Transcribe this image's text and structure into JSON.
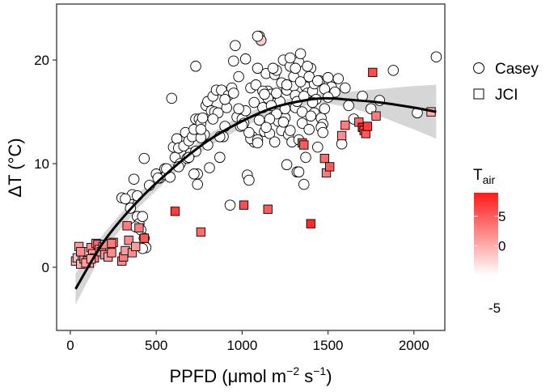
{
  "chart_data": {
    "type": "scatter",
    "xlabel": "PPFD (μmol m",
    "xlabel_sup1": "−2",
    "xlabel_mid": " s",
    "xlabel_sup2": "−1",
    "xlabel_end": ")",
    "ylabel": "ΔT (°C)",
    "xlim": [
      -80,
      2180
    ],
    "ylim": [
      -6.1,
      25.4
    ],
    "x_ticks": [
      0,
      500,
      1000,
      1500,
      2000
    ],
    "y_ticks": [
      0,
      10,
      20
    ],
    "grid": false,
    "legend": {
      "placement": "right",
      "entries": [
        {
          "label": "Casey",
          "shape": "circle"
        },
        {
          "label": "JCI",
          "shape": "square"
        }
      ]
    },
    "colorbar": {
      "title": "T",
      "title_sub": "air",
      "ticks": [
        5,
        0,
        -5
      ],
      "range": [
        -5,
        9
      ],
      "low_color": "#ffffff",
      "high_color": "#ff1a1a"
    },
    "fit_curve": {
      "x": [
        30,
        200,
        400,
        600,
        800,
        1000,
        1200,
        1400,
        1500,
        1600,
        1800,
        2000,
        2130
      ],
      "y": [
        -2.1,
        2.6,
        6.5,
        9.6,
        12.2,
        14.1,
        15.5,
        16.2,
        16.3,
        16.2,
        15.9,
        15.4,
        15.0
      ],
      "ci_lower": [
        -3.6,
        1.8,
        5.8,
        9.0,
        11.6,
        13.5,
        15.0,
        15.7,
        15.8,
        15.5,
        14.6,
        13.3,
        12.4
      ],
      "ci_upper": [
        -0.6,
        3.4,
        7.2,
        10.2,
        12.8,
        14.7,
        16.0,
        16.7,
        16.8,
        16.9,
        17.2,
        17.5,
        17.6
      ]
    },
    "series": [
      {
        "name": "Casey",
        "shape": "circle",
        "points": [
          [
            340,
            6.5
          ],
          [
            360,
            7.0
          ],
          [
            370,
            8.5
          ],
          [
            390,
            4.9
          ],
          [
            400,
            4.2
          ],
          [
            410,
            3.6
          ],
          [
            420,
            4.9
          ],
          [
            430,
            2.8
          ],
          [
            440,
            1.9
          ],
          [
            420,
            1.8
          ],
          [
            300,
            6.7
          ],
          [
            320,
            6.6
          ],
          [
            350,
            5.7
          ],
          [
            380,
            3.9
          ],
          [
            390,
            6.9
          ],
          [
            430,
            10.5
          ],
          [
            460,
            7.9
          ],
          [
            500,
            9.0
          ],
          [
            520,
            8.6
          ],
          [
            550,
            9.5
          ],
          [
            560,
            8.9
          ],
          [
            580,
            8.7
          ],
          [
            600,
            11.6
          ],
          [
            610,
            10.6
          ],
          [
            620,
            12.4
          ],
          [
            630,
            11.5
          ],
          [
            640,
            10.0
          ],
          [
            660,
            11.7
          ],
          [
            670,
            13.0
          ],
          [
            680,
            10.5
          ],
          [
            690,
            12.2
          ],
          [
            700,
            11.0
          ],
          [
            710,
            12.6
          ],
          [
            720,
            13.3
          ],
          [
            730,
            14.3
          ],
          [
            740,
            8.0
          ],
          [
            740,
            9.0
          ],
          [
            750,
            14.3
          ],
          [
            760,
            13.9
          ],
          [
            770,
            14.4
          ],
          [
            780,
            12.8
          ],
          [
            790,
            15.6
          ],
          [
            800,
            16.0
          ],
          [
            820,
            15.1
          ],
          [
            830,
            16.5
          ],
          [
            840,
            15.0
          ],
          [
            850,
            17.1
          ],
          [
            860,
            14.9
          ],
          [
            880,
            17.1
          ],
          [
            890,
            12.6
          ],
          [
            900,
            13.6
          ],
          [
            910,
            15.4
          ],
          [
            920,
            16.6
          ],
          [
            930,
            6.0
          ],
          [
            940,
            17.3
          ],
          [
            950,
            16.8
          ],
          [
            960,
            21.4
          ],
          [
            970,
            14.5
          ],
          [
            980,
            18.4
          ],
          [
            990,
            13.6
          ],
          [
            1000,
            14.3
          ],
          [
            1010,
            13.9
          ],
          [
            1020,
            15.1
          ],
          [
            1030,
            8.9
          ],
          [
            1040,
            8.4
          ],
          [
            1050,
            17.3
          ],
          [
            1060,
            12.6
          ],
          [
            1070,
            12.1
          ],
          [
            1080,
            17.6
          ],
          [
            1090,
            19.2
          ],
          [
            1100,
            22.3
          ],
          [
            1110,
            21.9
          ],
          [
            1120,
            15.4
          ],
          [
            1130,
            13.1
          ],
          [
            1140,
            18.7
          ],
          [
            1150,
            17.0
          ],
          [
            1160,
            12.9
          ],
          [
            1170,
            16.7
          ],
          [
            1180,
            14.5
          ],
          [
            1190,
            18.6
          ],
          [
            1200,
            19.0
          ],
          [
            1210,
            14.1
          ],
          [
            1220,
            16.0
          ],
          [
            1230,
            13.2
          ],
          [
            1240,
            20.0
          ],
          [
            1250,
            14.4
          ],
          [
            1260,
            17.1
          ],
          [
            1270,
            12.8
          ],
          [
            1280,
            19.4
          ],
          [
            1290,
            12.1
          ],
          [
            1300,
            17.5
          ],
          [
            1310,
            15.4
          ],
          [
            1320,
            9.2
          ],
          [
            1330,
            19.8
          ],
          [
            1340,
            20.6
          ],
          [
            1350,
            13.9
          ],
          [
            1360,
            8.0
          ],
          [
            1370,
            17.4
          ],
          [
            1380,
            16.8
          ],
          [
            1390,
            13.3
          ],
          [
            1400,
            19.2
          ],
          [
            1410,
            17.0
          ],
          [
            1420,
            14.9
          ],
          [
            1430,
            16.2
          ],
          [
            1440,
            11.6
          ],
          [
            1450,
            18.0
          ],
          [
            1460,
            14.4
          ],
          [
            1470,
            13.8
          ],
          [
            1480,
            15.3
          ],
          [
            1500,
            18.3
          ],
          [
            1510,
            16.6
          ],
          [
            1520,
            17.4
          ],
          [
            1540,
            16.9
          ],
          [
            1560,
            18.2
          ],
          [
            1580,
            11.9
          ],
          [
            1600,
            17.3
          ],
          [
            1620,
            15.6
          ],
          [
            1650,
            14.3
          ],
          [
            1700,
            16.5
          ],
          [
            1750,
            15.3
          ],
          [
            1800,
            16.1
          ],
          [
            1880,
            19.0
          ],
          [
            2020,
            14.9
          ],
          [
            2130,
            20.3
          ],
          [
            1090,
            22.3
          ],
          [
            1050,
            12.4
          ],
          [
            1150,
            16.3
          ],
          [
            1200,
            14.8
          ],
          [
            1250,
            15.3
          ],
          [
            1330,
            12.3
          ],
          [
            1380,
            19.4
          ],
          [
            1420,
            17.7
          ],
          [
            1000,
            13.7
          ],
          [
            1100,
            14.2
          ],
          [
            1170,
            15.6
          ],
          [
            1230,
            17.8
          ],
          [
            1310,
            16.6
          ],
          [
            1370,
            10.6
          ],
          [
            1260,
            9.9
          ],
          [
            1330,
            9.2
          ],
          [
            1120,
            17.0
          ],
          [
            1130,
            16.7
          ],
          [
            1180,
            19.2
          ],
          [
            1280,
            20.2
          ],
          [
            1300,
            18.4
          ],
          [
            1340,
            17.9
          ],
          [
            1460,
            13.5
          ],
          [
            950,
            19.9
          ],
          [
            1020,
            20.1
          ],
          [
            900,
            16.2
          ],
          [
            830,
            14.3
          ],
          [
            980,
            15.3
          ],
          [
            1070,
            15.9
          ],
          [
            1160,
            14.3
          ],
          [
            1200,
            16.8
          ],
          [
            1240,
            14.0
          ],
          [
            1280,
            13.2
          ],
          [
            1320,
            16.0
          ],
          [
            1350,
            15.0
          ],
          [
            1390,
            18.4
          ],
          [
            1410,
            15.9
          ],
          [
            1440,
            18.0
          ],
          [
            1480,
            17.2
          ],
          [
            1500,
            16.4
          ],
          [
            1040,
            13.0
          ],
          [
            1090,
            12.3
          ],
          [
            1140,
            13.5
          ],
          [
            1190,
            12.1
          ],
          [
            1260,
            17.6
          ],
          [
            1310,
            19.2
          ],
          [
            1360,
            16.5
          ],
          [
            1400,
            14.6
          ],
          [
            730,
            11.2
          ],
          [
            760,
            12.5
          ],
          [
            870,
            12.6
          ],
          [
            720,
            9.0
          ],
          [
            690,
            10.6
          ],
          [
            760,
            13.3
          ],
          [
            1090,
            12.0
          ],
          [
            1470,
            13.0
          ],
          [
            590,
            16.3
          ],
          [
            730,
            19.4
          ],
          [
            630,
            9.7
          ],
          [
            560,
            9.5
          ],
          [
            510,
            8.6
          ],
          [
            800,
            11.8
          ],
          [
            870,
            10.6
          ],
          [
            810,
            9.6
          ]
        ],
        "tair": [
          -5,
          -5,
          -5,
          -5,
          -5,
          -5,
          -5,
          -5,
          -5,
          -5,
          -5,
          -5,
          -5,
          -5,
          -5,
          -5,
          -5,
          -5,
          -5,
          -5,
          -5,
          -5,
          -5,
          -5,
          -5,
          -5,
          -5,
          -5,
          -5,
          -5,
          -5,
          -5,
          -5,
          -5,
          -5,
          -5,
          -5,
          -5,
          -5,
          -5,
          -5,
          -5,
          -5,
          -5,
          -5,
          -5,
          -5,
          -5,
          -5,
          -5,
          -5,
          -5,
          -5,
          -5,
          -5,
          -5,
          -5,
          -5,
          -5,
          -5,
          -5,
          -5,
          -5,
          -5,
          -5,
          -5,
          -5,
          -5,
          -5,
          -5,
          -5,
          -2,
          -5,
          -5,
          -5,
          -5,
          -5,
          -5,
          -5,
          -5,
          -5,
          -5,
          -5,
          -5,
          -5,
          -5,
          -5,
          -5,
          -5,
          -5,
          -5,
          -5,
          -5,
          -5,
          -5,
          -5,
          -5,
          -5,
          -5,
          -5,
          -5,
          -5,
          -5,
          -5,
          -5,
          -5,
          -5,
          -5,
          -5,
          -5,
          -5,
          -5,
          -5,
          -5,
          -5,
          -5,
          -5,
          -5,
          -5,
          -5,
          -5,
          -5,
          -5,
          -5,
          -5,
          -5,
          -5,
          -5,
          -5,
          -5,
          -5,
          -5,
          -5,
          -5,
          -5,
          -5,
          -5,
          -5,
          -5,
          -5,
          -5,
          -5,
          -5,
          -5,
          -5,
          -5,
          -5,
          -5,
          -5,
          -5,
          -5,
          -5,
          -5,
          -5,
          -5,
          -5,
          -5,
          -5,
          -5,
          -5,
          -5,
          -5,
          -5,
          -5,
          -5,
          -5,
          -5,
          -5,
          -5,
          -5,
          -5,
          -5,
          -5,
          -5,
          -5,
          -5,
          -5,
          -5,
          -5,
          -5,
          -5,
          -5,
          -5,
          -5,
          -5,
          -5,
          -5,
          -5,
          -5,
          -5,
          -5,
          -5,
          -5,
          -5,
          -5,
          -5
        ]
      },
      {
        "name": "JCI",
        "shape": "square",
        "points": [
          [
            30,
            0.6
          ],
          [
            40,
            0.9
          ],
          [
            50,
            2.0
          ],
          [
            60,
            0.3
          ],
          [
            70,
            1.1
          ],
          [
            80,
            0.8
          ],
          [
            90,
            1.5
          ],
          [
            100,
            0.6
          ],
          [
            110,
            0.4
          ],
          [
            120,
            1.9
          ],
          [
            130,
            1.3
          ],
          [
            140,
            0.9
          ],
          [
            150,
            2.3
          ],
          [
            160,
            2.2
          ],
          [
            170,
            1.7
          ],
          [
            180,
            1.5
          ],
          [
            190,
            2.0
          ],
          [
            200,
            1.2
          ],
          [
            220,
            1.0
          ],
          [
            230,
            2.0
          ],
          [
            240,
            1.4
          ],
          [
            250,
            2.4
          ],
          [
            300,
            0.6
          ],
          [
            310,
            1.0
          ],
          [
            320,
            1.6
          ],
          [
            330,
            4.0
          ],
          [
            340,
            2.6
          ],
          [
            360,
            1.4
          ],
          [
            380,
            2.0
          ],
          [
            400,
            3.8
          ],
          [
            430,
            2.8
          ],
          [
            90,
            0.4
          ],
          [
            120,
            0.8
          ],
          [
            60,
            1.5
          ],
          [
            200,
            2.2
          ],
          [
            240,
            2.3
          ],
          [
            610,
            5.4
          ],
          [
            760,
            3.4
          ],
          [
            1010,
            6.0
          ],
          [
            1150,
            5.6
          ],
          [
            1400,
            4.2
          ],
          [
            1350,
            12.0
          ],
          [
            1480,
            10.5
          ],
          [
            1490,
            9.1
          ],
          [
            1510,
            9.7
          ],
          [
            1580,
            12.7
          ],
          [
            1600,
            13.7
          ],
          [
            1680,
            14.0
          ],
          [
            1700,
            13.5
          ],
          [
            1710,
            13.2
          ],
          [
            1720,
            12.9
          ],
          [
            1730,
            13.6
          ],
          [
            1760,
            18.8
          ],
          [
            1780,
            14.6
          ],
          [
            2100,
            15.0
          ],
          [
            1360,
            11.8
          ]
        ],
        "tair": [
          0,
          -1,
          1,
          0,
          2,
          1,
          -1,
          0,
          1,
          2,
          1,
          3,
          2,
          4,
          0,
          1,
          3,
          2,
          1,
          0,
          2,
          1,
          2,
          3,
          1,
          3,
          2,
          2,
          1,
          3,
          5,
          1,
          0,
          2,
          2,
          3,
          7,
          4,
          6,
          5,
          8,
          5,
          4,
          3,
          5,
          2,
          3,
          4,
          9,
          6,
          5,
          7,
          6,
          3,
          0,
          5
        ]
      }
    ]
  }
}
